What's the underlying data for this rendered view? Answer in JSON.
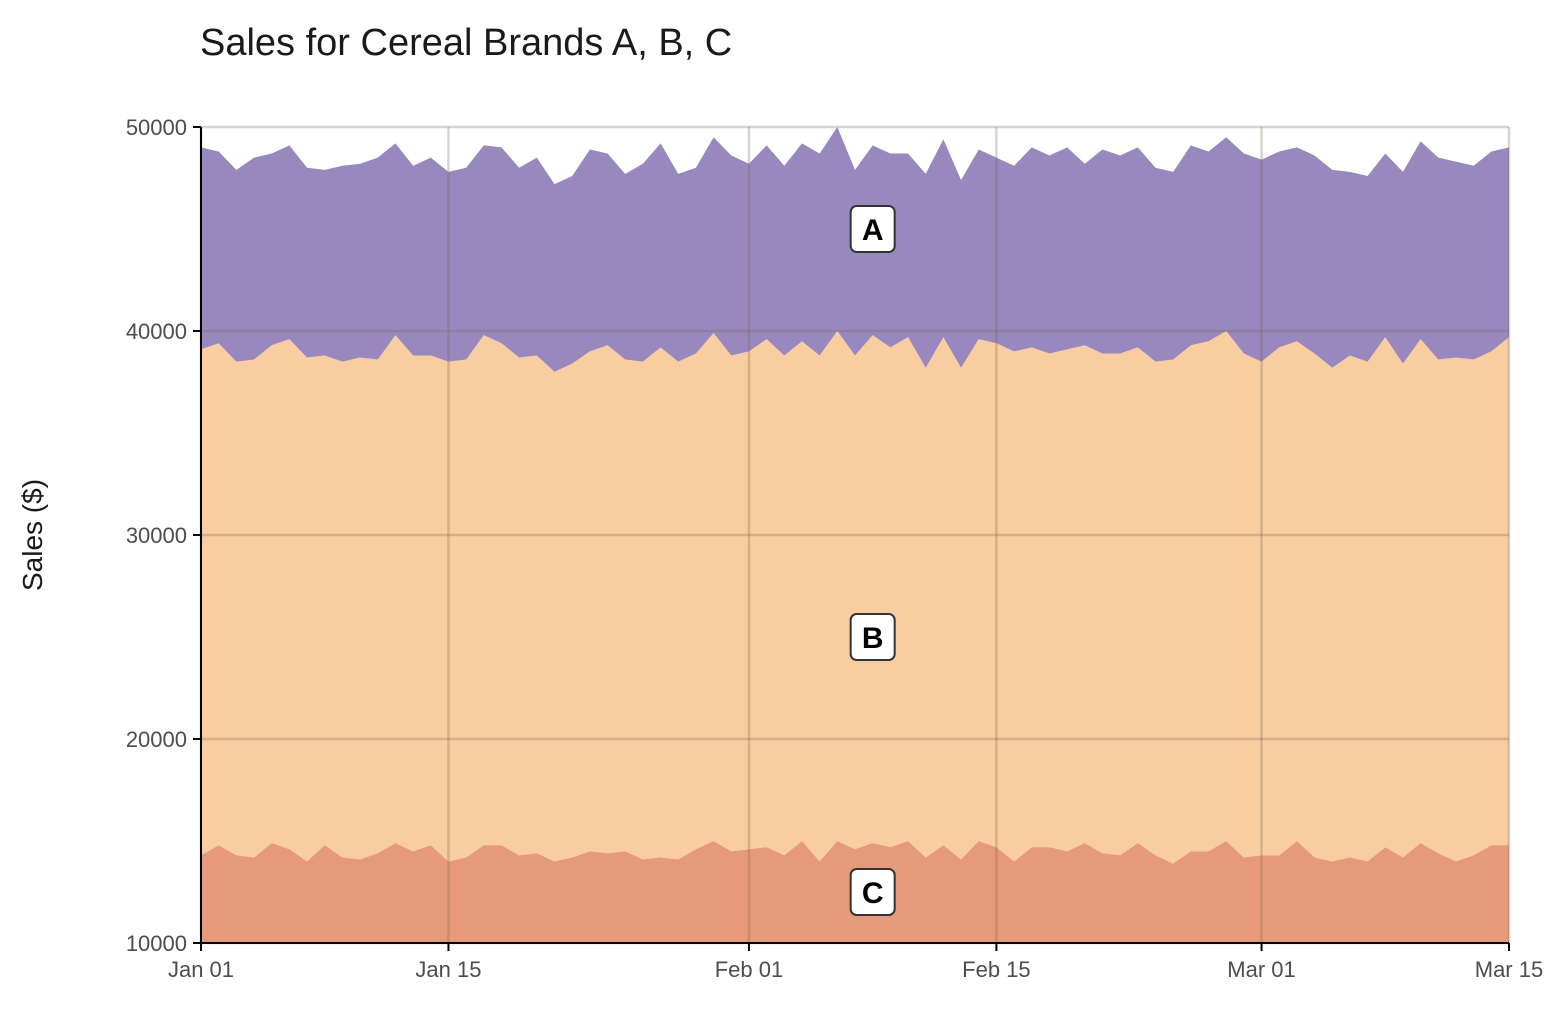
{
  "chart_data": {
    "type": "area",
    "stacked": true,
    "title": "Sales for Cereal Brands A, B, C",
    "xlabel": "",
    "ylabel": "Sales ($)",
    "ylim": [
      10000,
      50000
    ],
    "yticks": [
      "10000",
      "20000",
      "30000",
      "40000",
      "50000"
    ],
    "xlim": [
      "2024-01-01",
      "2024-03-15"
    ],
    "xticks": [
      {
        "date": "2024-01-01",
        "label": "Jan 01"
      },
      {
        "date": "2024-01-15",
        "label": "Jan 15"
      },
      {
        "date": "2024-02-01",
        "label": "Feb 01"
      },
      {
        "date": "2024-02-15",
        "label": "Feb 15"
      },
      {
        "date": "2024-03-01",
        "label": "Mar 01"
      },
      {
        "date": "2024-03-15",
        "label": "Mar 15"
      }
    ],
    "grid": true,
    "legend": "none",
    "x": [
      "2024-01-01",
      "2024-01-02",
      "2024-01-03",
      "2024-01-04",
      "2024-01-05",
      "2024-01-06",
      "2024-01-07",
      "2024-01-08",
      "2024-01-09",
      "2024-01-10",
      "2024-01-11",
      "2024-01-12",
      "2024-01-13",
      "2024-01-14",
      "2024-01-15",
      "2024-01-16",
      "2024-01-17",
      "2024-01-18",
      "2024-01-19",
      "2024-01-20",
      "2024-01-21",
      "2024-01-22",
      "2024-01-23",
      "2024-01-24",
      "2024-01-25",
      "2024-01-26",
      "2024-01-27",
      "2024-01-28",
      "2024-01-29",
      "2024-01-30",
      "2024-01-31",
      "2024-02-01",
      "2024-02-02",
      "2024-02-03",
      "2024-02-04",
      "2024-02-05",
      "2024-02-06",
      "2024-02-07",
      "2024-02-08",
      "2024-02-09",
      "2024-02-10",
      "2024-02-11",
      "2024-02-12",
      "2024-02-13",
      "2024-02-14",
      "2024-02-15",
      "2024-02-16",
      "2024-02-17",
      "2024-02-18",
      "2024-02-19",
      "2024-02-20",
      "2024-02-21",
      "2024-02-22",
      "2024-02-23",
      "2024-02-24",
      "2024-02-25",
      "2024-02-26",
      "2024-02-27",
      "2024-02-28",
      "2024-02-29",
      "2024-03-01",
      "2024-03-02",
      "2024-03-03",
      "2024-03-04",
      "2024-03-05",
      "2024-03-06",
      "2024-03-07",
      "2024-03-08",
      "2024-03-09",
      "2024-03-10",
      "2024-03-11",
      "2024-03-12",
      "2024-03-13",
      "2024-03-14",
      "2024-03-15"
    ],
    "stack_tops": {
      "C": [
        14300,
        14800,
        14300,
        14200,
        14900,
        14600,
        14000,
        14800,
        14200,
        14100,
        14400,
        14900,
        14500,
        14800,
        14000,
        14200,
        14800,
        14800,
        14300,
        14400,
        14000,
        14200,
        14500,
        14400,
        14500,
        14100,
        14200,
        14100,
        14600,
        15000,
        14500,
        14600,
        14700,
        14300,
        15000,
        14000,
        15000,
        14600,
        14900,
        14700,
        15000,
        14200,
        14800,
        14100,
        15000,
        14700,
        14000,
        14700,
        14700,
        14500,
        14900,
        14400,
        14300,
        14900,
        14300,
        13900,
        14500,
        14500,
        15000,
        14200,
        14300,
        14300,
        15000,
        14200,
        14000,
        14200,
        14000,
        14700,
        14200,
        14900,
        14400,
        14000,
        14300,
        14800,
        14800
      ],
      "B": [
        39100,
        39400,
        38500,
        38600,
        39300,
        39600,
        38700,
        38800,
        38500,
        38700,
        38600,
        39800,
        38800,
        38800,
        38500,
        38600,
        39800,
        39400,
        38700,
        38800,
        38000,
        38400,
        39000,
        39300,
        38600,
        38500,
        39200,
        38500,
        38900,
        39900,
        38800,
        39000,
        39600,
        38800,
        39500,
        38800,
        40000,
        38800,
        39800,
        39200,
        39700,
        38200,
        39700,
        38200,
        39600,
        39400,
        39000,
        39200,
        38900,
        39100,
        39300,
        38900,
        38900,
        39200,
        38500,
        38600,
        39300,
        39500,
        40000,
        38900,
        38500,
        39200,
        39500,
        38900,
        38200,
        38800,
        38500,
        39700,
        38400,
        39600,
        38600,
        38700,
        38600,
        39000,
        39700
      ],
      "A": [
        49000,
        48800,
        47900,
        48500,
        48700,
        49100,
        48000,
        47900,
        48100,
        48200,
        48500,
        49200,
        48100,
        48500,
        47800,
        48000,
        49100,
        49000,
        48000,
        48500,
        47200,
        47600,
        48900,
        48700,
        47700,
        48200,
        49200,
        47700,
        48000,
        49500,
        48600,
        48200,
        49100,
        48100,
        49200,
        48700,
        50000,
        47900,
        49100,
        48700,
        48700,
        47700,
        49400,
        47400,
        48900,
        48500,
        48100,
        49000,
        48600,
        49000,
        48200,
        48900,
        48600,
        49000,
        48000,
        47800,
        49100,
        48800,
        49500,
        48700,
        48400,
        48800,
        49000,
        48600,
        47900,
        47800,
        47600,
        48700,
        47800,
        49300,
        48500,
        48300,
        48100,
        48800,
        49000
      ]
    },
    "series": [
      {
        "name": "A",
        "color": "#9988bd"
      },
      {
        "name": "B",
        "color": "#f8cda0"
      },
      {
        "name": "C",
        "color": "#e69a7b"
      }
    ],
    "annotations": [
      {
        "text": "A",
        "x": "2024-02-08",
        "y": 45000
      },
      {
        "text": "B",
        "x": "2024-02-08",
        "y": 25000
      },
      {
        "text": "C",
        "x": "2024-02-08",
        "y": 12500
      }
    ]
  }
}
